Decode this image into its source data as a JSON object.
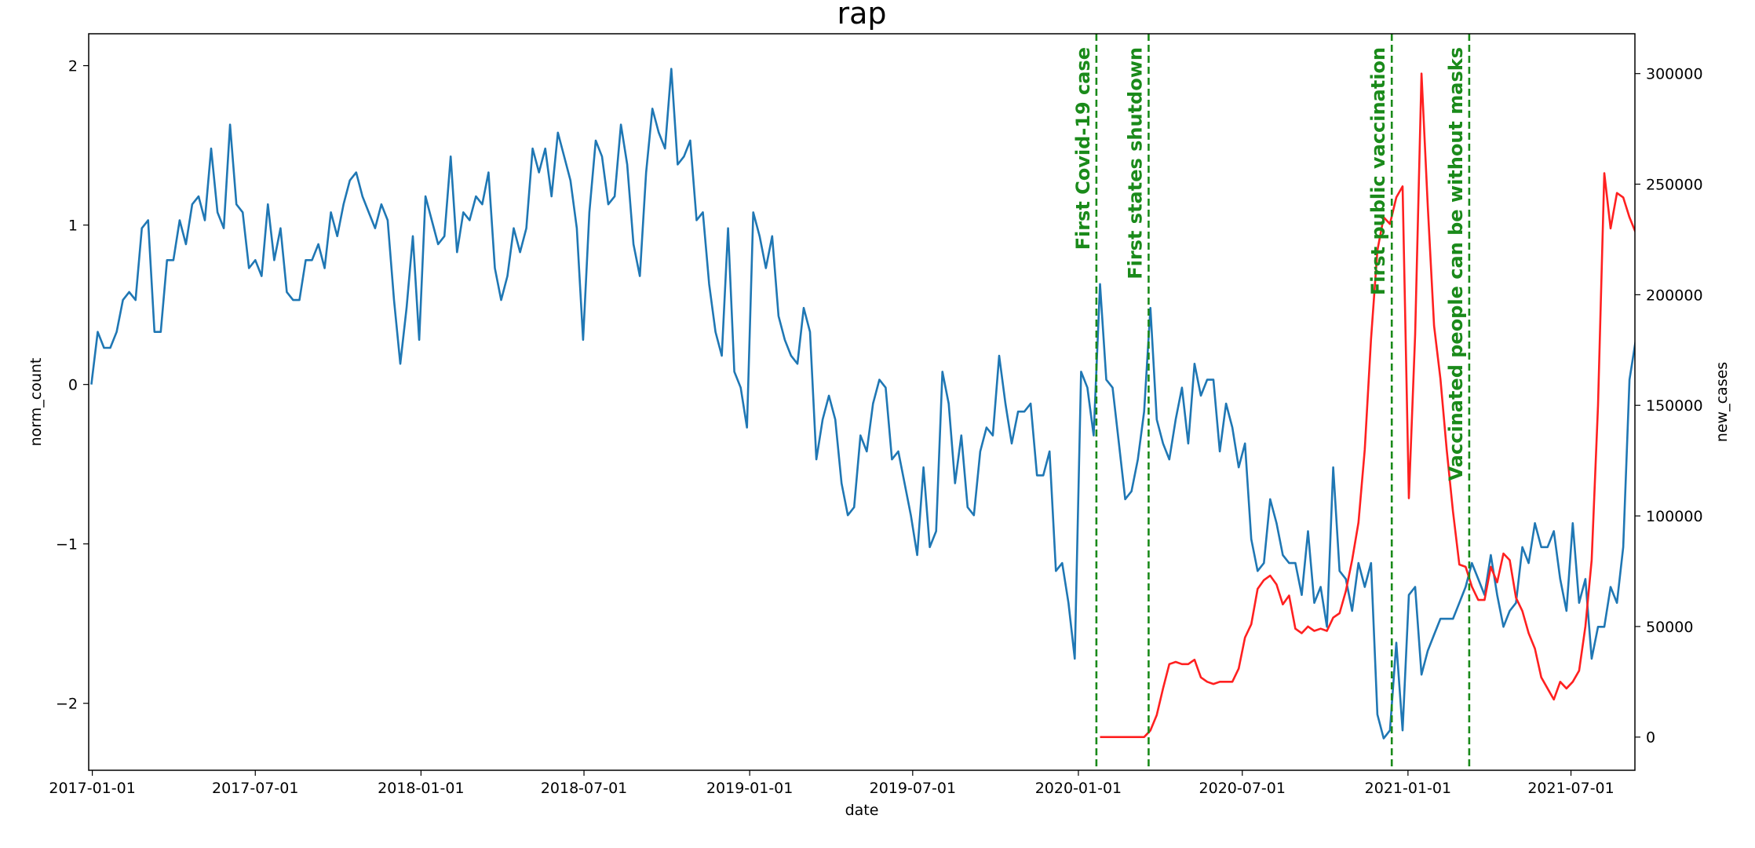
{
  "chart_data": {
    "type": "line",
    "title": "rap",
    "xlabel": "date",
    "ylabel": "norm_count",
    "y2label": "new_cases",
    "grid": false,
    "x_ticks": [
      "2017-01-01",
      "2017-07-01",
      "2018-01-01",
      "2018-07-01",
      "2019-01-01",
      "2019-07-01",
      "2020-01-01",
      "2020-07-01",
      "2021-01-01",
      "2021-07-01"
    ],
    "x_range": [
      "2016-12-28",
      "2021-09-10"
    ],
    "ylim": [
      -2.42,
      2.2
    ],
    "y_ticks": [
      -2,
      -1,
      0,
      1,
      2
    ],
    "y2lim": [
      -15000,
      318000
    ],
    "y2_ticks": [
      0,
      50000,
      100000,
      150000,
      200000,
      250000,
      300000
    ],
    "series": [
      {
        "axis": "left",
        "color": "#1f77b4",
        "x_start": "2016-12-31",
        "step_days": 7,
        "values": [
          0.0,
          0.33,
          0.23,
          0.23,
          0.33,
          0.53,
          0.58,
          0.53,
          0.98,
          1.03,
          0.33,
          0.33,
          0.78,
          0.78,
          1.03,
          0.88,
          1.13,
          1.18,
          1.03,
          1.48,
          1.08,
          0.98,
          1.63,
          1.13,
          1.08,
          0.73,
          0.78,
          0.68,
          1.13,
          0.78,
          0.98,
          0.58,
          0.53,
          0.53,
          0.78,
          0.78,
          0.88,
          0.73,
          1.08,
          0.93,
          1.13,
          1.28,
          1.33,
          1.18,
          1.08,
          0.98,
          1.13,
          1.03,
          0.53,
          0.13,
          0.48,
          0.93,
          0.28,
          1.18,
          1.03,
          0.88,
          0.93,
          1.43,
          0.83,
          1.08,
          1.03,
          1.18,
          1.13,
          1.33,
          0.73,
          0.53,
          0.68,
          0.98,
          0.83,
          0.98,
          1.48,
          1.33,
          1.48,
          1.18,
          1.58,
          1.43,
          1.28,
          0.98,
          0.28,
          1.08,
          1.53,
          1.43,
          1.13,
          1.18,
          1.63,
          1.38,
          0.88,
          0.68,
          1.33,
          1.73,
          1.58,
          1.48,
          1.98,
          1.38,
          1.43,
          1.53,
          1.03,
          1.08,
          0.63,
          0.33,
          0.18,
          0.98,
          0.08,
          -0.02,
          -0.27,
          1.08,
          0.93,
          0.73,
          0.93,
          0.43,
          0.28,
          0.18,
          0.13,
          0.48,
          0.33,
          -0.47,
          -0.22,
          -0.07,
          -0.22,
          -0.62,
          -0.82,
          -0.77,
          -0.32,
          -0.42,
          -0.12,
          0.03,
          -0.02,
          -0.47,
          -0.42,
          -0.62,
          -0.82,
          -1.07,
          -0.52,
          -1.02,
          -0.92,
          0.08,
          -0.12,
          -0.62,
          -0.32,
          -0.77,
          -0.82,
          -0.42,
          -0.27,
          -0.32,
          0.18,
          -0.12,
          -0.37,
          -0.17,
          -0.17,
          -0.12,
          -0.57,
          -0.57,
          -0.42,
          -1.17,
          -1.12,
          -1.37,
          -1.72,
          0.08,
          -0.02,
          -0.32,
          0.63,
          0.03,
          -0.02,
          -0.37,
          -0.72,
          -0.67,
          -0.47,
          -0.17,
          0.48,
          -0.22,
          -0.37,
          -0.47,
          -0.22,
          -0.02,
          -0.37,
          0.13,
          -0.07,
          0.03,
          0.03,
          -0.42,
          -0.12,
          -0.27,
          -0.52,
          -0.37,
          -0.97,
          -1.17,
          -1.12,
          -0.72,
          -0.87,
          -1.07,
          -1.12,
          -1.12,
          -1.32,
          -0.92,
          -1.37,
          -1.27,
          -1.52,
          -0.52,
          -1.17,
          -1.22,
          -1.42,
          -1.12,
          -1.27,
          -1.12,
          -2.07,
          -2.22,
          -2.17,
          -1.62,
          -2.17,
          -1.32,
          -1.27,
          -1.82,
          -1.67,
          -1.57,
          -1.47,
          -1.47,
          -1.47,
          -1.37,
          -1.27,
          -1.12,
          -1.22,
          -1.32,
          -1.07,
          -1.32,
          -1.52,
          -1.42,
          -1.37,
          -1.02,
          -1.12,
          -0.87,
          -1.02,
          -1.02,
          -0.92,
          -1.22,
          -1.42,
          -0.87,
          -1.37,
          -1.22,
          -1.72,
          -1.52,
          -1.52,
          -1.27,
          -1.37,
          -1.02,
          0.03,
          0.28,
          0.03,
          -0.47
        ]
      },
      {
        "axis": "right",
        "color": "#ff2020",
        "x_start": "2020-01-25",
        "step_days": 7,
        "values": [
          0,
          0,
          0,
          0,
          0,
          0,
          0,
          0,
          3000,
          10000,
          22000,
          33000,
          34000,
          33000,
          33000,
          35000,
          27000,
          25000,
          24000,
          25000,
          25000,
          25000,
          31000,
          45000,
          51000,
          67000,
          71000,
          73000,
          69000,
          60000,
          64000,
          49000,
          47000,
          50000,
          48000,
          49000,
          48000,
          54000,
          56000,
          66000,
          80000,
          97000,
          130000,
          180000,
          220000,
          235000,
          232000,
          244000,
          249000,
          108000,
          182000,
          300000,
          240000,
          186000,
          162000,
          130000,
          102000,
          78000,
          77000,
          68000,
          62000,
          62000,
          77000,
          70000,
          83000,
          80000,
          63000,
          57000,
          47000,
          40000,
          27000,
          22000,
          17000,
          25000,
          22000,
          25000,
          30000,
          50000,
          80000,
          150000,
          255000,
          230000,
          246000,
          244000,
          235000,
          228000,
          208000
        ]
      }
    ],
    "events": [
      {
        "date": "2020-01-21",
        "label": "First Covid-19 case"
      },
      {
        "date": "2020-03-19",
        "label": "First states shutdown"
      },
      {
        "date": "2020-12-14",
        "label": "First public vaccination"
      },
      {
        "date": "2021-03-10",
        "label": "Vaccinated people can be without masks"
      }
    ],
    "event_color": "#1a8a1a"
  }
}
